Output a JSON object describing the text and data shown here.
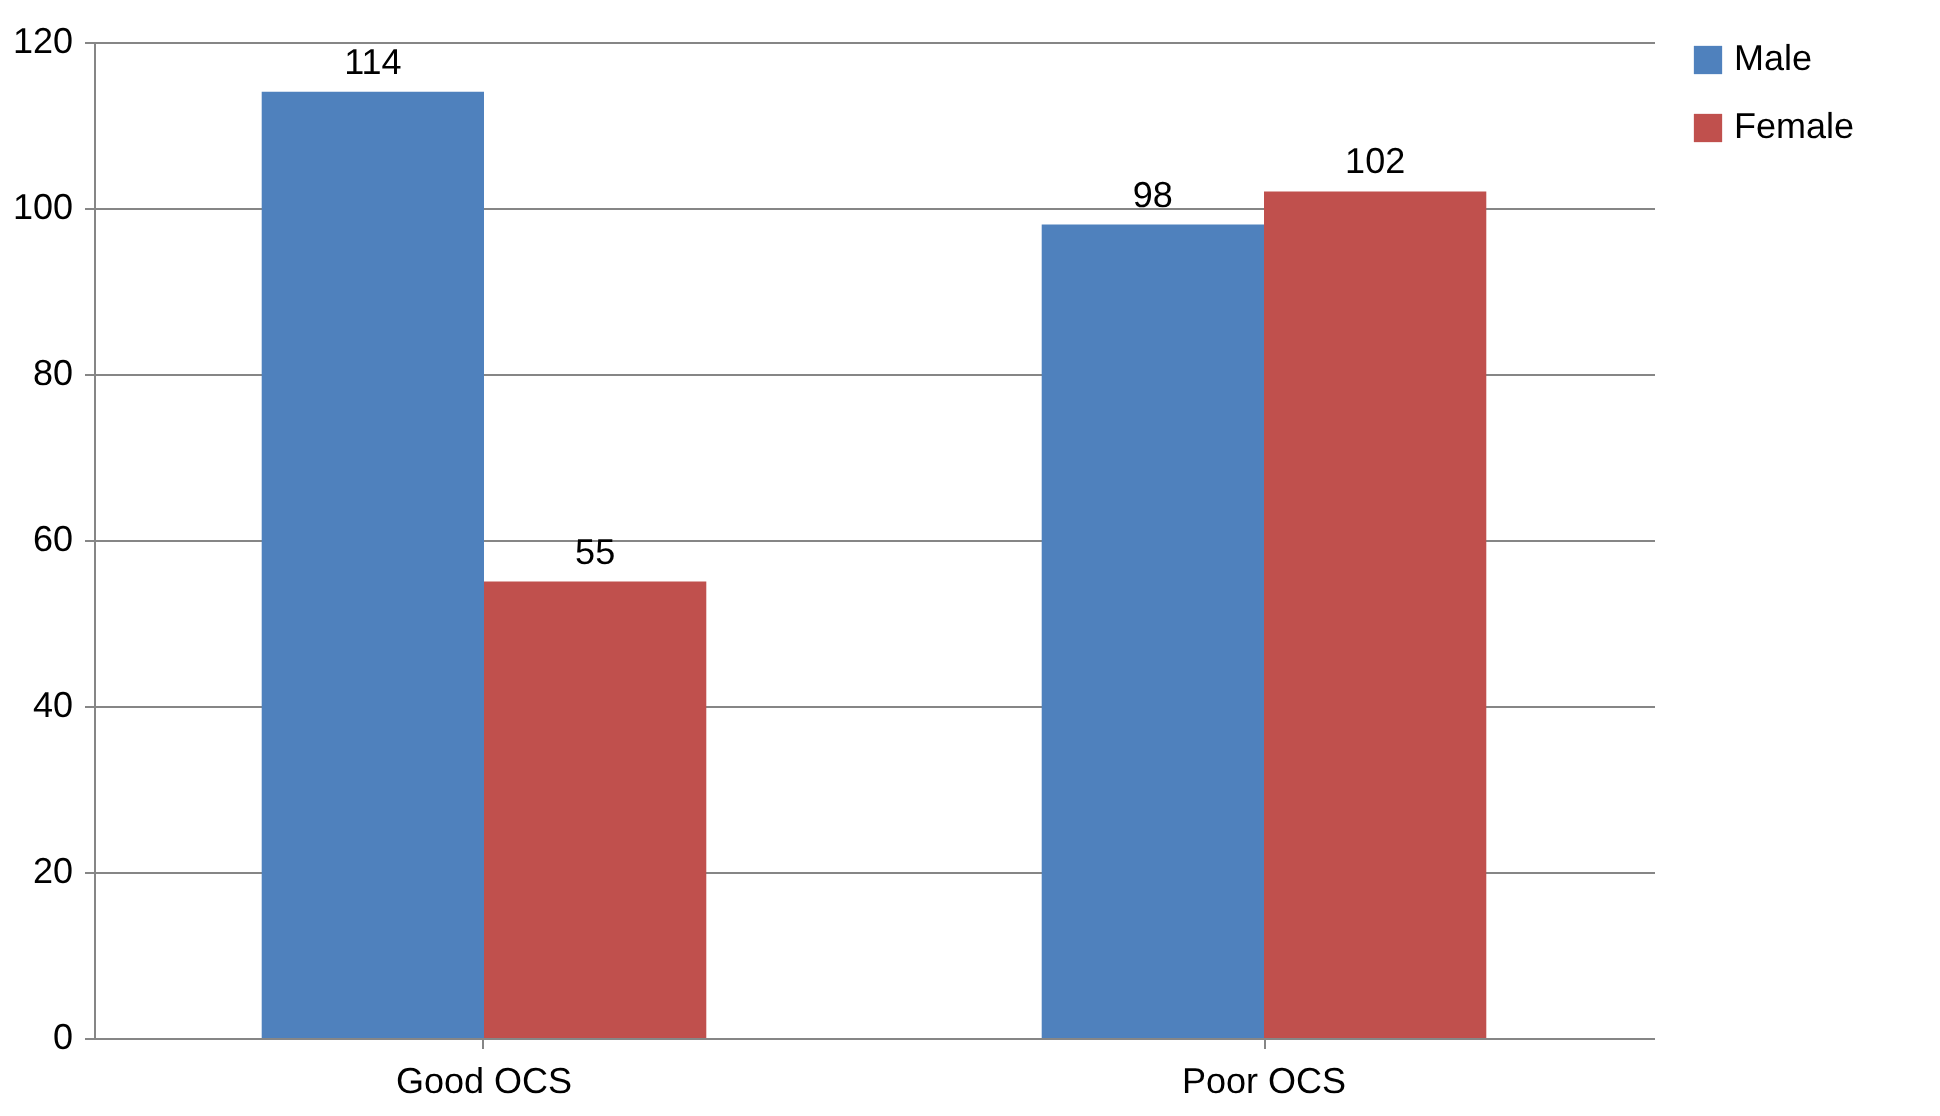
{
  "chart_data": {
    "type": "bar",
    "categories": [
      "Good OCS",
      "Poor OCS"
    ],
    "series": [
      {
        "name": "Male",
        "color": "#4f81bd",
        "values": [
          114,
          98
        ]
      },
      {
        "name": "Female",
        "color": "#c0504d",
        "values": [
          55,
          102
        ]
      }
    ],
    "ylim": [
      0,
      120
    ],
    "yticks": [
      0,
      20,
      40,
      60,
      80,
      100,
      120
    ],
    "grid": "y",
    "legend": "right",
    "data_labels": true
  }
}
